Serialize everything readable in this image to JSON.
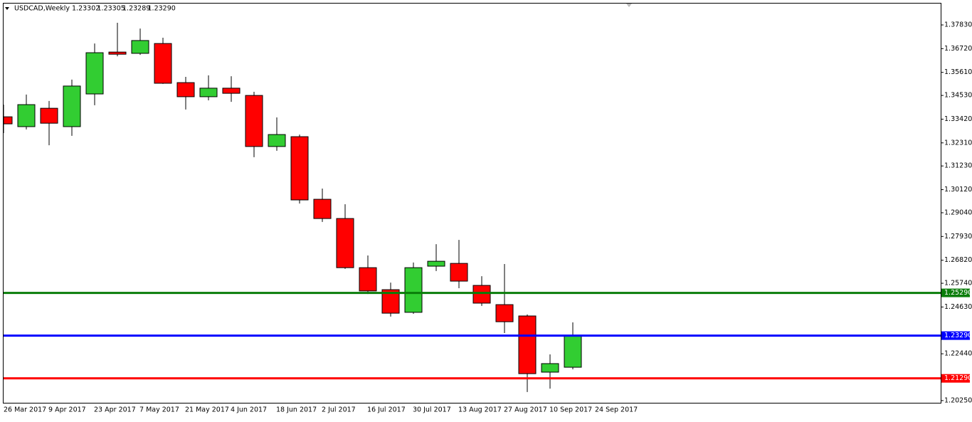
{
  "chart_data": {
    "type": "candlestick",
    "title": "USDCAD,Weekly",
    "ohlc_readout": [
      {
        "value": 1.23302,
        "label": "1.23302"
      },
      {
        "value": 1.23305,
        "label": "1.23305"
      },
      {
        "value": 1.23289,
        "label": "1.23289"
      },
      {
        "value": 1.2329,
        "label": "1.23290"
      }
    ],
    "categories": [
      "26 Mar 2017",
      null,
      "9 Apr 2017",
      null,
      "23 Apr 2017",
      null,
      "7 May 2017",
      null,
      "21 May 2017",
      null,
      "4 Jun 2017",
      null,
      "18 Jun 2017",
      null,
      "2 Jul 2017",
      null,
      "16 Jul 2017",
      null,
      "30 Jul 2017",
      null,
      "13 Aug 2017",
      null,
      "27 Aug 2017",
      null,
      "10 Sep 2017",
      null,
      "24 Sep 2017"
    ],
    "open": [
      1.3353,
      1.3307,
      1.3393,
      1.3307,
      1.346,
      1.3656,
      1.365,
      1.3696,
      1.3513,
      1.3447,
      1.3487,
      1.3453,
      1.3214,
      1.326,
      1.2967,
      1.2877,
      1.2647,
      1.2544,
      1.2438,
      1.2654,
      1.2667,
      1.2564,
      1.2474,
      1.2421,
      1.2158,
      1.2181,
      null
    ],
    "high": [
      1.341,
      1.3457,
      1.3427,
      1.3527,
      1.3696,
      1.3793,
      1.3766,
      1.3723,
      1.354,
      1.3547,
      1.3543,
      1.347,
      1.335,
      1.327,
      1.3017,
      1.2944,
      1.2704,
      1.2577,
      1.2671,
      1.2757,
      1.2777,
      1.2607,
      1.2664,
      1.2428,
      1.2241,
      1.2391,
      null
    ],
    "low": [
      1.3277,
      1.3294,
      1.322,
      1.3264,
      1.3407,
      1.3636,
      1.3643,
      1.3507,
      1.3387,
      1.343,
      1.3423,
      1.3164,
      1.3194,
      1.2947,
      1.2861,
      1.2641,
      1.2524,
      1.2418,
      1.2431,
      1.2631,
      1.2551,
      1.2468,
      1.2341,
      1.2065,
      1.2081,
      1.2171,
      null
    ],
    "close": [
      1.332,
      1.341,
      1.3323,
      1.3497,
      1.3653,
      1.3646,
      1.371,
      1.351,
      1.3447,
      1.3487,
      1.3463,
      1.3214,
      1.327,
      1.2964,
      1.2877,
      1.2647,
      1.2538,
      1.2434,
      1.2647,
      1.2677,
      1.2584,
      1.2481,
      1.2394,
      1.2151,
      1.2198,
      1.2329,
      null
    ],
    "up_color": "#32cd32",
    "down_color": "#ff0000",
    "ylim": [
      1.2018,
      1.3883
    ],
    "yticks": [
      {
        "value": 1.3783,
        "label": "1.37830"
      },
      {
        "value": 1.3672,
        "label": "1.36720"
      },
      {
        "value": 1.3561,
        "label": "1.35610"
      },
      {
        "value": 1.3453,
        "label": "1.34530"
      },
      {
        "value": 1.3342,
        "label": "1.33420"
      },
      {
        "value": 1.3231,
        "label": "1.32310"
      },
      {
        "value": 1.3123,
        "label": "1.31230"
      },
      {
        "value": 1.3012,
        "label": "1.30120"
      },
      {
        "value": 1.2904,
        "label": "1.29040"
      },
      {
        "value": 1.2793,
        "label": "1.27930"
      },
      {
        "value": 1.2682,
        "label": "1.26820"
      },
      {
        "value": 1.2574,
        "label": "1.25740"
      },
      {
        "value": 1.2463,
        "label": "1.24630"
      },
      {
        "value": 1.2244,
        "label": "1.22440"
      },
      {
        "value": 1.2025,
        "label": "1.20250"
      }
    ],
    "hlines": [
      {
        "value": 1.2529,
        "label": "1.25290",
        "color": "#0a7d0a"
      },
      {
        "value": 1.2329,
        "label": "1.23290",
        "color": "#0000ff"
      },
      {
        "value": 1.2129,
        "label": "1.21290",
        "color": "#ff0000"
      }
    ]
  }
}
